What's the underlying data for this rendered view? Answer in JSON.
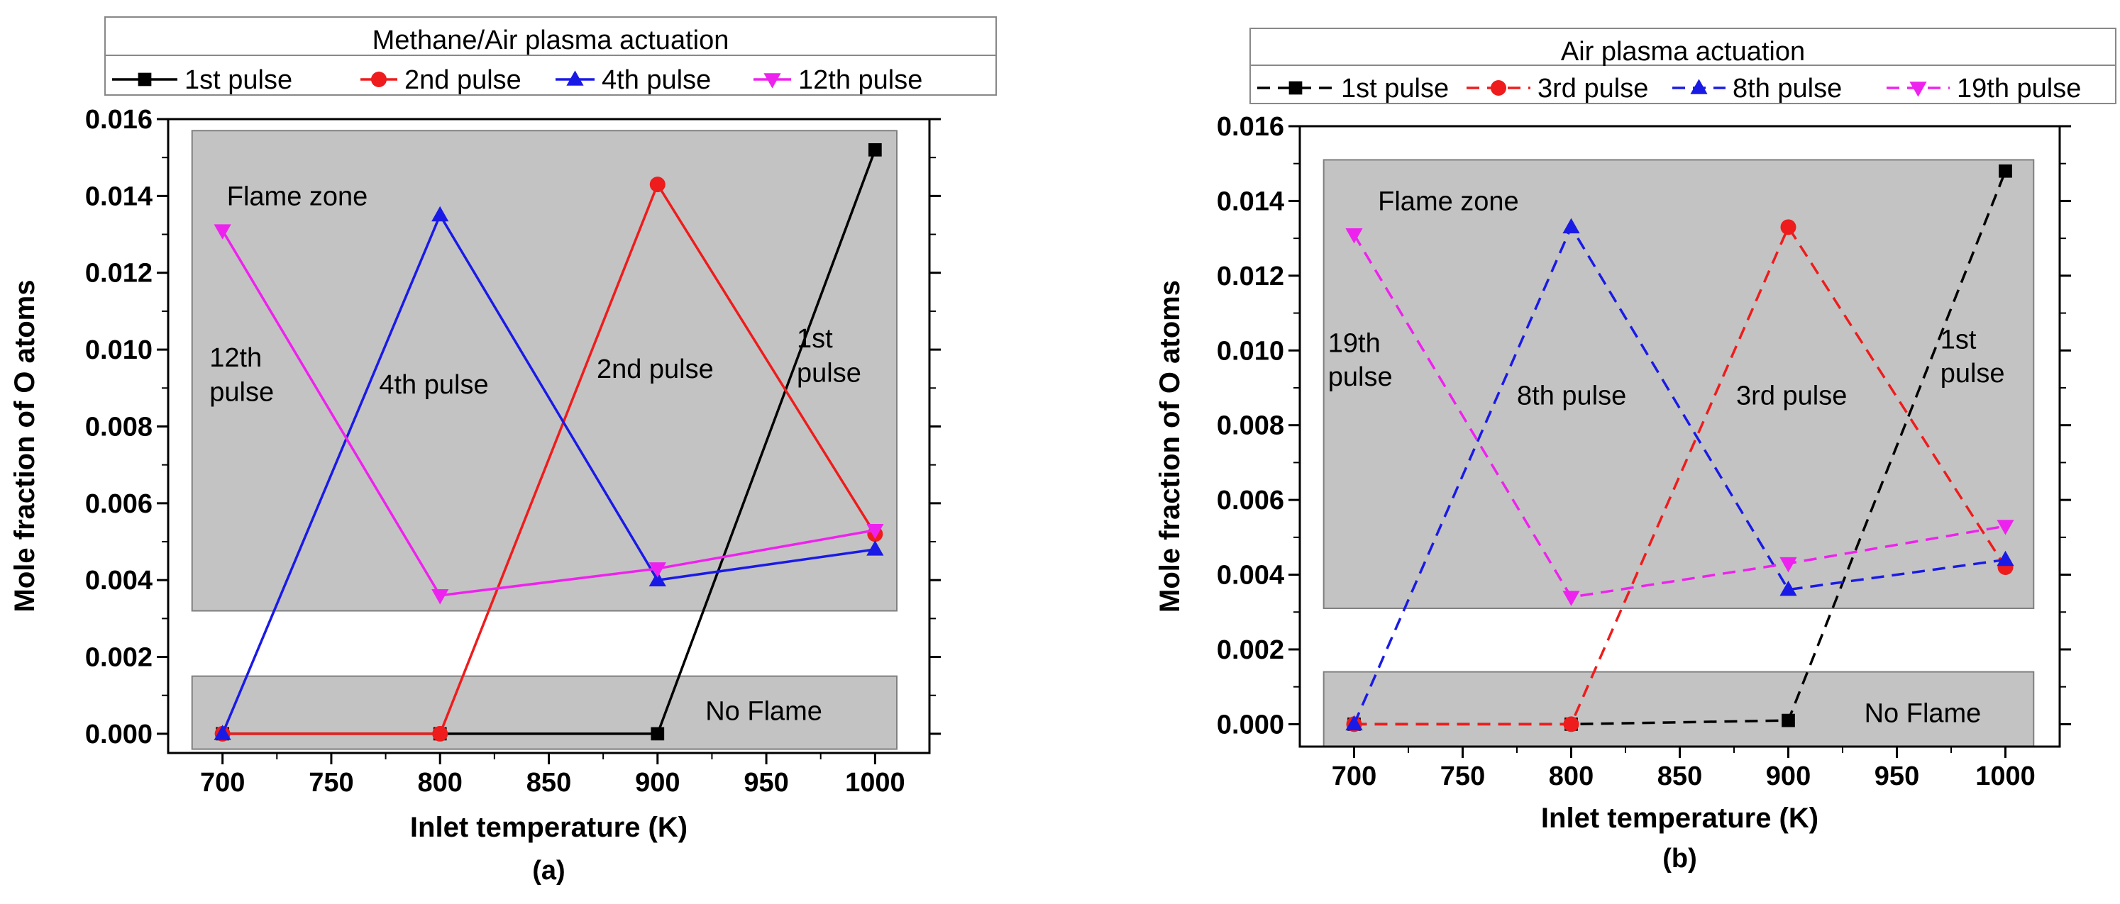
{
  "chart_data": [
    {
      "type": "line",
      "panel_label": "(a)",
      "legend_title": "Methane/Air plasma actuation",
      "xlabel": "Inlet temperature (K)",
      "ylabel": "Mole fraction of O atoms",
      "xlim": [
        675,
        1025
      ],
      "ylim": [
        -0.0005,
        0.016
      ],
      "xticks": [
        700,
        750,
        800,
        850,
        900,
        950,
        1000
      ],
      "yticks": [
        0.0,
        0.002,
        0.004,
        0.006,
        0.008,
        0.01,
        0.012,
        0.014,
        0.016
      ],
      "x": [
        700,
        800,
        900,
        1000
      ],
      "series": [
        {
          "name": "1st pulse",
          "color": "#000000",
          "marker": "square",
          "dashed": false,
          "values": [
            0.0,
            0.0,
            0.0,
            0.0152
          ]
        },
        {
          "name": "2nd pulse",
          "color": "#ee1c1c",
          "marker": "circle",
          "dashed": false,
          "values": [
            0.0,
            0.0,
            0.0143,
            0.0052
          ]
        },
        {
          "name": "4th pulse",
          "color": "#1a1ae6",
          "marker": "triangle-up",
          "dashed": false,
          "values": [
            0.0,
            0.0135,
            0.004,
            0.0048
          ]
        },
        {
          "name": "12th pulse",
          "color": "#ee22ee",
          "marker": "triangle-down",
          "dashed": false,
          "values": [
            0.0131,
            0.0036,
            0.0043,
            0.0053
          ]
        }
      ],
      "zones": [
        {
          "label": "Flame zone",
          "y_range": [
            0.0032,
            0.0157
          ],
          "x_range": [
            686,
            1010
          ]
        },
        {
          "label": "No Flame",
          "y_range": [
            -0.0004,
            0.0015
          ],
          "x_range": [
            686,
            1010
          ]
        }
      ],
      "annotations": [
        {
          "text": "Flame zone",
          "x": 702,
          "y": 0.014
        },
        {
          "text": "12th",
          "x": 694,
          "y": 0.0098
        },
        {
          "text": "pulse",
          "x": 694,
          "y": 0.0089
        },
        {
          "text": "4th pulse",
          "x": 772,
          "y": 0.0091
        },
        {
          "text": "2nd pulse",
          "x": 872,
          "y": 0.0095
        },
        {
          "text": "1st",
          "x": 964,
          "y": 0.0103
        },
        {
          "text": "pulse",
          "x": 964,
          "y": 0.0094
        },
        {
          "text": "No Flame",
          "x": 922,
          "y": 0.0006
        }
      ]
    },
    {
      "type": "line",
      "panel_label": "(b)",
      "legend_title": "Air plasma actuation",
      "xlabel": "Inlet temperature (K)",
      "ylabel": "Mole fraction of O atoms",
      "xlim": [
        675,
        1025
      ],
      "ylim": [
        -0.0006,
        0.016
      ],
      "xticks": [
        700,
        750,
        800,
        850,
        900,
        950,
        1000
      ],
      "yticks": [
        0.0,
        0.002,
        0.004,
        0.006,
        0.008,
        0.01,
        0.012,
        0.014,
        0.016
      ],
      "x": [
        700,
        800,
        900,
        1000
      ],
      "series": [
        {
          "name": "1st pulse",
          "color": "#000000",
          "marker": "square",
          "dashed": true,
          "values": [
            0.0,
            0.0,
            0.0001,
            0.0148
          ]
        },
        {
          "name": "3rd pulse",
          "color": "#ee1c1c",
          "marker": "circle",
          "dashed": true,
          "values": [
            0.0,
            0.0,
            0.0133,
            0.0042
          ]
        },
        {
          "name": "8th pulse",
          "color": "#1a1ae6",
          "marker": "triangle-up",
          "dashed": true,
          "values": [
            0.0,
            0.0133,
            0.0036,
            0.0044
          ]
        },
        {
          "name": "19th pulse",
          "color": "#ee22ee",
          "marker": "triangle-down",
          "dashed": true,
          "values": [
            0.0131,
            0.0034,
            0.0043,
            0.0053
          ]
        }
      ],
      "zones": [
        {
          "label": "Flame zone",
          "y_range": [
            0.0031,
            0.0151
          ],
          "x_range": [
            686,
            1013
          ]
        },
        {
          "label": "No Flame",
          "y_range": [
            -0.0006,
            0.0014
          ],
          "x_range": [
            686,
            1013
          ]
        }
      ],
      "annotations": [
        {
          "text": "Flame zone",
          "x": 711,
          "y": 0.014
        },
        {
          "text": "19th",
          "x": 688,
          "y": 0.0102
        },
        {
          "text": "pulse",
          "x": 688,
          "y": 0.0093
        },
        {
          "text": "8th pulse",
          "x": 775,
          "y": 0.0088
        },
        {
          "text": "3rd pulse",
          "x": 876,
          "y": 0.0088
        },
        {
          "text": "1st",
          "x": 970,
          "y": 0.0103
        },
        {
          "text": "pulse",
          "x": 970,
          "y": 0.0094
        },
        {
          "text": "No Flame",
          "x": 935,
          "y": 0.0003
        }
      ]
    }
  ]
}
